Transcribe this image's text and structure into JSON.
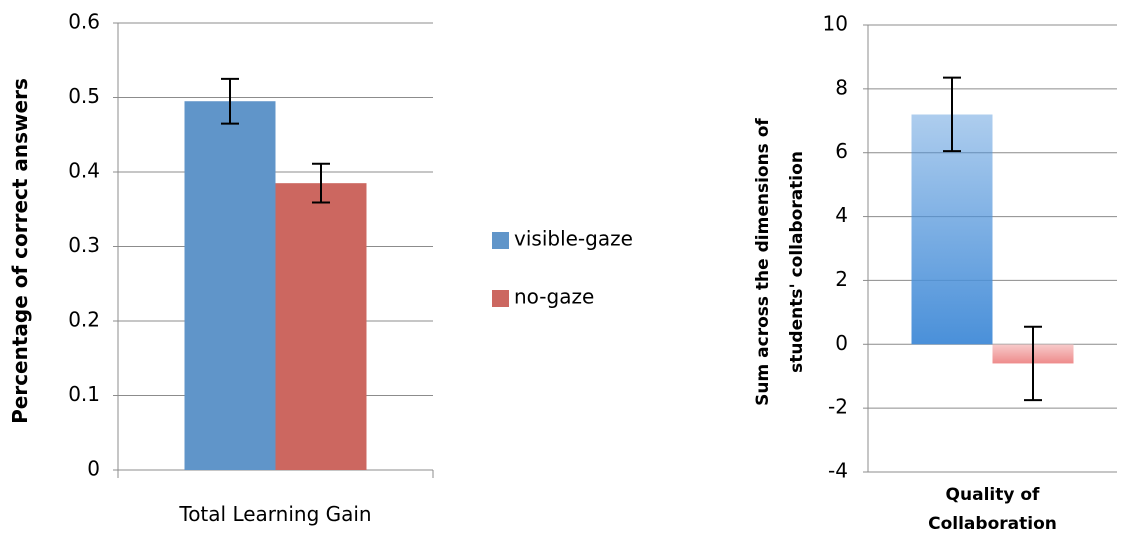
{
  "chart_data": [
    {
      "type": "bar",
      "y_label": "Percentage of correct answers",
      "categories": [
        "Total Learning Gain"
      ],
      "series": [
        {
          "name": "visible-gaze",
          "color": "#6095c9",
          "values": [
            0.495
          ],
          "errors": [
            0.03
          ]
        },
        {
          "name": "no-gaze",
          "color": "#cc6760",
          "values": [
            0.385
          ],
          "errors": [
            0.026
          ]
        }
      ],
      "ylim": [
        0,
        0.6
      ],
      "yticks": [
        0,
        0.1,
        0.2,
        0.3,
        0.4,
        0.5,
        0.6
      ],
      "grid": true,
      "legend": "right",
      "gradient": false
    },
    {
      "type": "bar",
      "y_label": "Sum across the dimensions of students' collaboration",
      "categories": [
        "Quality of Collaboration"
      ],
      "series": [
        {
          "color": "#4a90d9",
          "values": [
            7.2
          ],
          "errors": [
            1.15
          ]
        },
        {
          "color": "#ee8b8b",
          "values": [
            -0.6
          ],
          "errors": [
            1.15
          ]
        }
      ],
      "ylim": [
        -4,
        10
      ],
      "yticks": [
        -4,
        -2,
        0,
        2,
        4,
        6,
        8,
        10
      ],
      "grid": true,
      "gradient": true
    }
  ]
}
